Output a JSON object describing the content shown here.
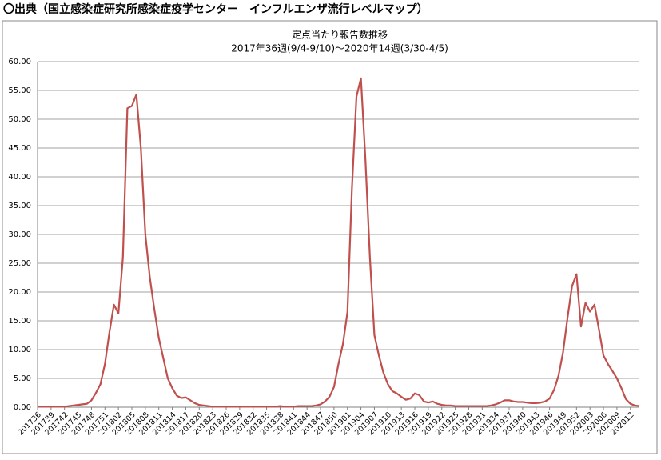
{
  "header": "〇出典（国立感染症研究所感染症疫学センター　インフルエンザ流行レベルマップ）",
  "chart_data": {
    "type": "line",
    "title": "定点当たり報告数推移",
    "subtitle": "2017年36週(9/4-9/10)～2020年14週(3/30-4/5)",
    "categories": [
      "201736",
      null,
      null,
      "201739",
      null,
      null,
      "201742",
      null,
      null,
      "201745",
      null,
      null,
      "201748",
      null,
      null,
      "201751",
      null,
      null,
      "201802",
      null,
      null,
      "201805",
      null,
      null,
      "201808",
      null,
      null,
      "201811",
      null,
      null,
      "201814",
      null,
      null,
      "201817",
      null,
      null,
      "201820",
      null,
      null,
      "201823",
      null,
      null,
      "201826",
      null,
      null,
      "201829",
      null,
      null,
      "201832",
      null,
      null,
      "201835",
      null,
      null,
      "201838",
      null,
      null,
      "201841",
      null,
      null,
      "201844",
      null,
      null,
      "201847",
      null,
      null,
      "201850",
      null,
      null,
      "201901",
      null,
      null,
      "201904",
      null,
      null,
      "201907",
      null,
      null,
      "201910",
      null,
      null,
      "201913",
      null,
      null,
      "201916",
      null,
      null,
      "201919",
      null,
      null,
      "201922",
      null,
      null,
      "201925",
      null,
      null,
      "201928",
      null,
      null,
      "201931",
      null,
      null,
      "201934",
      null,
      null,
      "201937",
      null,
      null,
      "201940",
      null,
      null,
      "201943",
      null,
      null,
      "201946",
      null,
      null,
      "201949",
      null,
      null,
      "201952",
      null,
      null,
      "202003",
      null,
      null,
      "202006",
      null,
      null,
      "202009",
      null,
      null,
      "202012",
      null,
      null
    ],
    "values": [
      0.1,
      0.1,
      0.1,
      0.1,
      0.1,
      0.1,
      0.1,
      0.2,
      0.3,
      0.4,
      0.5,
      0.6,
      1.2,
      2.5,
      4,
      7.5,
      13,
      17.8,
      16.3,
      26,
      51.9,
      52.3,
      54.3,
      45,
      30,
      22.5,
      17,
      12,
      8.5,
      5,
      3.3,
      2,
      1.6,
      1.7,
      1.2,
      0.7,
      0.4,
      0.3,
      0.2,
      0.1,
      0.1,
      0.1,
      0.1,
      0.1,
      0.1,
      0.1,
      0.1,
      0.1,
      0.1,
      0.1,
      0.1,
      0.1,
      0.1,
      0.1,
      0.2,
      0.1,
      0.1,
      0.1,
      0.2,
      0.2,
      0.2,
      0.2,
      0.3,
      0.5,
      1.0,
      1.8,
      3.5,
      7.5,
      11,
      16.5,
      38,
      53.9,
      57.1,
      43,
      26,
      12.5,
      9,
      6,
      4,
      2.8,
      2.4,
      1.8,
      1.3,
      1.5,
      2.4,
      2.1,
      1.0,
      0.8,
      1.0,
      0.6,
      0.4,
      0.3,
      0.3,
      0.2,
      0.2,
      0.2,
      0.2,
      0.2,
      0.2,
      0.2,
      0.2,
      0.3,
      0.5,
      0.8,
      1.2,
      1.2,
      1.0,
      0.9,
      0.9,
      0.8,
      0.7,
      0.7,
      0.8,
      1.0,
      1.5,
      3,
      5.5,
      9.5,
      15.5,
      21,
      23.1,
      14,
      18.1,
      16.6,
      17.8,
      13.5,
      9,
      7.5,
      6.3,
      5,
      3.3,
      1.4,
      0.6,
      0.3,
      0.2
    ],
    "color": "#c0504d",
    "ylim": [
      0,
      60
    ],
    "yticks": [
      {
        "value": 0,
        "label": "0.00"
      },
      {
        "value": 5,
        "label": "5.00"
      },
      {
        "value": 10,
        "label": "10.00"
      },
      {
        "value": 15,
        "label": "15.00"
      },
      {
        "value": 20,
        "label": "20.00"
      },
      {
        "value": 25,
        "label": "25.00"
      },
      {
        "value": 30,
        "label": "30.00"
      },
      {
        "value": 35,
        "label": "35.00"
      },
      {
        "value": 40,
        "label": "40.00"
      },
      {
        "value": 45,
        "label": "45.00"
      },
      {
        "value": 50,
        "label": "50.00"
      },
      {
        "value": 55,
        "label": "55.00"
      },
      {
        "value": 60,
        "label": "60.00"
      }
    ],
    "grid": true
  }
}
